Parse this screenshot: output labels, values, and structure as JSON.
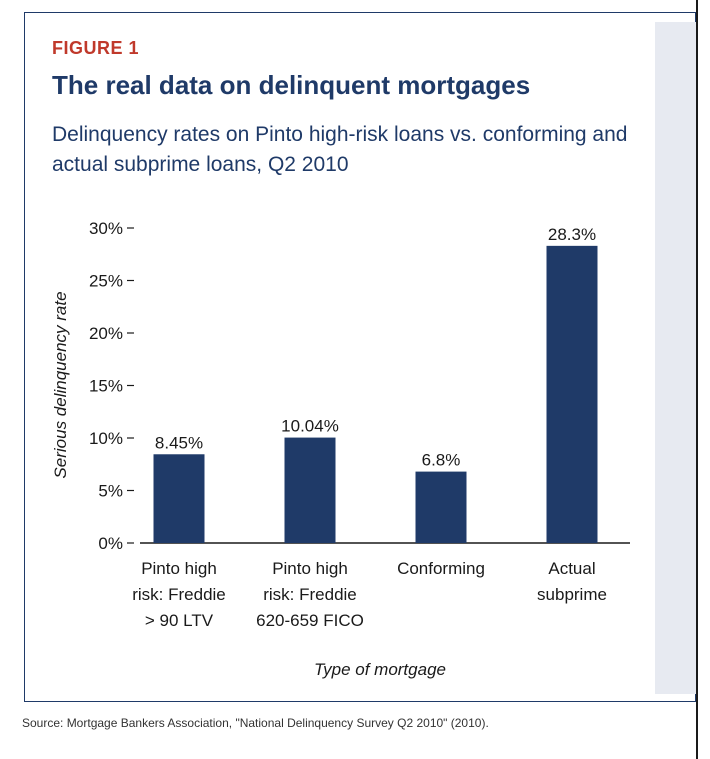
{
  "figure": {
    "label": "FIGURE 1",
    "title": "The real data on delinquent mortgages",
    "subtitle": "Delinquency rates on Pinto high-risk loans vs. conforming and actual subprime loans, Q2 2010",
    "source": "Source: Mortgage Bankers Association, \"National Delinquency Survey Q2 2010\" (2010)."
  },
  "colors": {
    "bar": "#1f3a68",
    "label_red": "#c0392b",
    "title_blue": "#1f3a68"
  },
  "chart_data": {
    "type": "bar",
    "title": "Delinquency rates on Pinto high-risk loans vs. conforming and actual subprime loans, Q2 2010",
    "xlabel": "Type of mortgage",
    "ylabel": "Serious delinquency rate",
    "ylim": [
      0,
      30
    ],
    "yticks": [
      0,
      5,
      10,
      15,
      20,
      25,
      30
    ],
    "ytick_labels": [
      "0%",
      "5%",
      "10%",
      "15%",
      "20%",
      "25%",
      "30%"
    ],
    "categories": [
      [
        "Pinto high",
        "risk: Freddie",
        "> 90 LTV"
      ],
      [
        "Pinto high",
        "risk: Freddie",
        "620-659 FICO"
      ],
      [
        "Conforming"
      ],
      [
        "Actual",
        "subprime"
      ]
    ],
    "values": [
      8.45,
      10.04,
      6.8,
      28.3
    ],
    "value_labels": [
      "8.45%",
      "10.04%",
      "6.8%",
      "28.3%"
    ],
    "grid": false,
    "legend": "none"
  }
}
